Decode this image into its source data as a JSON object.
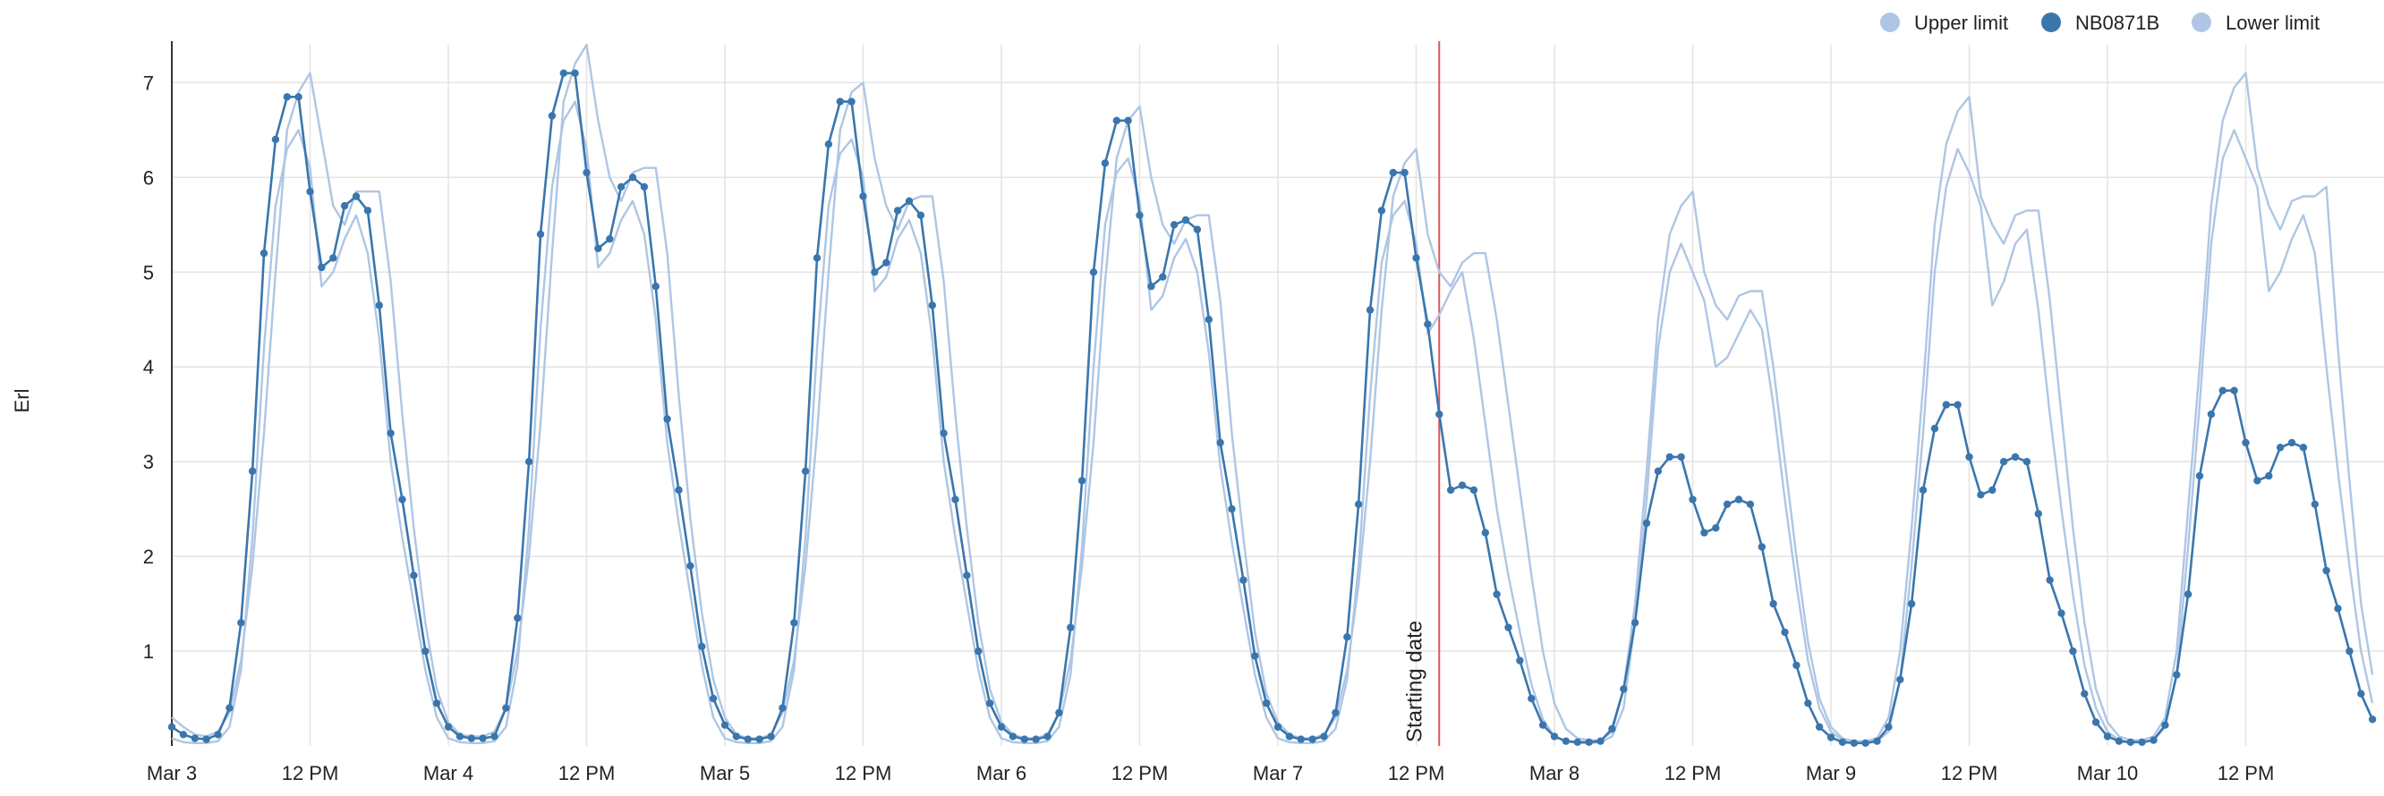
{
  "chart_data": {
    "type": "line",
    "title": "",
    "xlabel": "",
    "ylabel": "Erl",
    "x_start": "2024-03-03T00:00",
    "x_end": "2024-03-10T24:00",
    "step_hours": 1,
    "ylim": [
      0,
      7.4
    ],
    "y_ticks": [
      1,
      2,
      3,
      4,
      5,
      6,
      7
    ],
    "x_tick_labels": [
      "Mar 3",
      "12 PM",
      "Mar 4",
      "12 PM",
      "Mar 5",
      "12 PM",
      "Mar 6",
      "12 PM",
      "Mar 7",
      "12 PM",
      "Mar 8",
      "12 PM",
      "Mar 9",
      "12 PM",
      "Mar 10",
      "12 PM"
    ],
    "grid": true,
    "legend_position": "top-right",
    "annotation": {
      "label": "Starting date",
      "x": "2024-03-07T14:00",
      "color": "#e05555"
    },
    "series": [
      {
        "name": "Upper limit",
        "color": "#aec6e4",
        "markers": false,
        "values": [
          0.3,
          0.2,
          0.12,
          0.1,
          0.15,
          0.35,
          0.9,
          1.9,
          3.3,
          5.0,
          6.5,
          6.9,
          7.1,
          6.4,
          5.7,
          5.5,
          5.85,
          5.85,
          5.85,
          4.9,
          3.5,
          2.3,
          1.3,
          0.6,
          0.25,
          0.12,
          0.1,
          0.1,
          0.15,
          0.4,
          1.0,
          2.0,
          3.4,
          5.2,
          6.8,
          7.2,
          7.4,
          6.6,
          6.0,
          5.75,
          6.05,
          6.1,
          6.1,
          5.2,
          3.7,
          2.4,
          1.4,
          0.7,
          0.3,
          0.12,
          0.08,
          0.08,
          0.12,
          0.35,
          0.9,
          1.9,
          3.3,
          5.0,
          6.5,
          6.9,
          7.0,
          6.2,
          5.7,
          5.45,
          5.75,
          5.8,
          5.8,
          4.9,
          3.5,
          2.3,
          1.3,
          0.6,
          0.25,
          0.12,
          0.08,
          0.08,
          0.12,
          0.35,
          0.9,
          1.9,
          3.2,
          4.9,
          6.2,
          6.6,
          6.75,
          6.0,
          5.5,
          5.3,
          5.55,
          5.6,
          5.6,
          4.7,
          3.3,
          2.2,
          1.2,
          0.55,
          0.25,
          0.12,
          0.08,
          0.08,
          0.12,
          0.3,
          0.8,
          1.7,
          3.0,
          4.6,
          5.8,
          6.15,
          6.3,
          5.4,
          5.0,
          4.85,
          5.1,
          5.2,
          5.2,
          4.5,
          3.6,
          2.7,
          1.8,
          1.0,
          0.45,
          0.18,
          0.08,
          0.06,
          0.06,
          0.15,
          0.6,
          1.5,
          2.9,
          4.5,
          5.4,
          5.7,
          5.85,
          5.0,
          4.65,
          4.5,
          4.75,
          4.8,
          4.8,
          4.0,
          3.0,
          2.0,
          1.1,
          0.5,
          0.2,
          0.08,
          0.05,
          0.05,
          0.08,
          0.3,
          1.0,
          2.3,
          3.8,
          5.5,
          6.35,
          6.7,
          6.85,
          5.8,
          5.5,
          5.3,
          5.6,
          5.65,
          5.65,
          4.7,
          3.5,
          2.3,
          1.3,
          0.6,
          0.25,
          0.1,
          0.06,
          0.06,
          0.1,
          0.3,
          1.0,
          2.5,
          4.0,
          5.7,
          6.6,
          6.95,
          7.1,
          6.1,
          5.7,
          5.45,
          5.75,
          5.8,
          5.8,
          5.9,
          4.2,
          2.8,
          1.5,
          0.75
        ]
      },
      {
        "name": "NB0871B",
        "color": "#3a76ad",
        "markers": true,
        "values": [
          0.2,
          0.12,
          0.08,
          0.07,
          0.12,
          0.4,
          1.3,
          2.9,
          5.2,
          6.4,
          6.85,
          6.85,
          5.85,
          5.05,
          5.15,
          5.7,
          5.8,
          5.65,
          4.65,
          3.3,
          2.6,
          1.8,
          1.0,
          0.45,
          0.2,
          0.1,
          0.08,
          0.08,
          0.1,
          0.4,
          1.35,
          3.0,
          5.4,
          6.65,
          7.1,
          7.1,
          6.05,
          5.25,
          5.35,
          5.9,
          6.0,
          5.9,
          4.85,
          3.45,
          2.7,
          1.9,
          1.05,
          0.5,
          0.22,
          0.1,
          0.07,
          0.07,
          0.1,
          0.4,
          1.3,
          2.9,
          5.15,
          6.35,
          6.8,
          6.8,
          5.8,
          5.0,
          5.1,
          5.65,
          5.75,
          5.6,
          4.65,
          3.3,
          2.6,
          1.8,
          1.0,
          0.45,
          0.2,
          0.1,
          0.07,
          0.07,
          0.1,
          0.35,
          1.25,
          2.8,
          5.0,
          6.15,
          6.6,
          6.6,
          5.6,
          4.85,
          4.95,
          5.5,
          5.55,
          5.45,
          4.5,
          3.2,
          2.5,
          1.75,
          0.95,
          0.45,
          0.2,
          0.1,
          0.07,
          0.07,
          0.1,
          0.35,
          1.15,
          2.55,
          4.6,
          5.65,
          6.05,
          6.05,
          5.15,
          4.45,
          3.5,
          2.7,
          2.75,
          2.7,
          2.25,
          1.6,
          1.25,
          0.9,
          0.5,
          0.22,
          0.1,
          0.05,
          0.04,
          0.04,
          0.05,
          0.18,
          0.6,
          1.3,
          2.35,
          2.9,
          3.05,
          3.05,
          2.6,
          2.25,
          2.3,
          2.55,
          2.6,
          2.55,
          2.1,
          1.5,
          1.2,
          0.85,
          0.45,
          0.2,
          0.09,
          0.04,
          0.03,
          0.03,
          0.05,
          0.2,
          0.7,
          1.5,
          2.7,
          3.35,
          3.6,
          3.6,
          3.05,
          2.65,
          2.7,
          3.0,
          3.05,
          3.0,
          2.45,
          1.75,
          1.4,
          1.0,
          0.55,
          0.25,
          0.1,
          0.05,
          0.04,
          0.04,
          0.06,
          0.22,
          0.75,
          1.6,
          2.85,
          3.5,
          3.75,
          3.75,
          3.2,
          2.8,
          2.85,
          3.15,
          3.2,
          3.15,
          2.55,
          1.85,
          1.45,
          1.0,
          0.55,
          0.28
        ]
      },
      {
        "name": "Lower limit",
        "color": "#aec6e4",
        "markers": false,
        "values": [
          0.08,
          0.04,
          0.03,
          0.03,
          0.05,
          0.2,
          0.8,
          2.2,
          4.2,
          5.7,
          6.3,
          6.5,
          6.1,
          4.85,
          5.0,
          5.35,
          5.6,
          5.2,
          4.3,
          3.0,
          2.2,
          1.5,
          0.8,
          0.3,
          0.08,
          0.04,
          0.03,
          0.03,
          0.05,
          0.2,
          0.85,
          2.3,
          4.4,
          5.9,
          6.6,
          6.8,
          6.3,
          5.05,
          5.2,
          5.55,
          5.75,
          5.4,
          4.5,
          3.2,
          2.35,
          1.6,
          0.85,
          0.3,
          0.08,
          0.04,
          0.03,
          0.03,
          0.05,
          0.2,
          0.8,
          2.2,
          4.2,
          5.7,
          6.25,
          6.4,
          6.0,
          4.8,
          4.95,
          5.35,
          5.55,
          5.2,
          4.3,
          3.0,
          2.2,
          1.5,
          0.8,
          0.3,
          0.08,
          0.04,
          0.03,
          0.03,
          0.05,
          0.2,
          0.75,
          2.1,
          4.0,
          5.5,
          6.05,
          6.2,
          5.75,
          4.6,
          4.75,
          5.15,
          5.35,
          5.0,
          4.15,
          2.95,
          2.15,
          1.45,
          0.75,
          0.3,
          0.08,
          0.04,
          0.03,
          0.03,
          0.05,
          0.18,
          0.7,
          1.9,
          3.7,
          5.1,
          5.6,
          5.75,
          5.3,
          4.35,
          4.55,
          4.8,
          5.0,
          4.3,
          3.4,
          2.5,
          1.8,
          1.2,
          0.65,
          0.28,
          0.1,
          0.05,
          0.03,
          0.03,
          0.04,
          0.1,
          0.4,
          1.3,
          2.6,
          4.2,
          5.0,
          5.3,
          5.0,
          4.7,
          4.0,
          4.1,
          4.35,
          4.6,
          4.4,
          3.6,
          2.6,
          1.7,
          0.9,
          0.4,
          0.15,
          0.06,
          0.03,
          0.03,
          0.05,
          0.15,
          0.7,
          1.9,
          3.3,
          5.0,
          5.9,
          6.3,
          6.05,
          5.7,
          4.65,
          4.9,
          5.3,
          5.45,
          4.6,
          3.5,
          2.5,
          1.6,
          0.85,
          0.4,
          0.15,
          0.06,
          0.04,
          0.04,
          0.06,
          0.2,
          0.75,
          2.1,
          3.6,
          5.3,
          6.2,
          6.5,
          6.2,
          5.9,
          4.8,
          5.0,
          5.35,
          5.6,
          5.2,
          4.0,
          2.9,
          1.9,
          1.0,
          0.45
        ]
      }
    ]
  }
}
